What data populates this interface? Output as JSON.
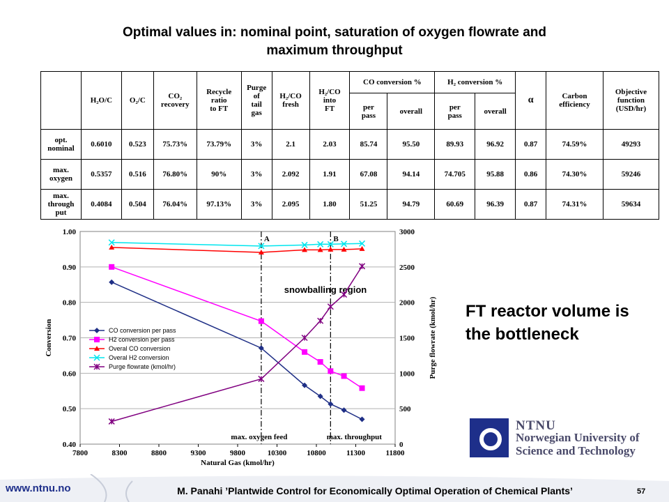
{
  "slide": {
    "title_line1": "Optimal values in: nominal point, saturation of oxygen flowrate and",
    "title_line2": "maximum throughput",
    "note_line1": "FT reactor volume is",
    "note_line2": "the bottleneck"
  },
  "table": {
    "headers": {
      "h2o_c": "H₂O/C",
      "o2_c": "O₂/C",
      "co2_recovery_1": "CO₂",
      "co2_recovery_2": "recovery",
      "recycle_1": "Recycle",
      "recycle_2": "ratio",
      "recycle_3": "to FT",
      "purge_1": "Purge",
      "purge_2": "of",
      "purge_3": "tail",
      "purge_4": "gas",
      "h2co_fresh_1": "H₂/CO",
      "h2co_fresh_2": "fresh",
      "h2co_ft_1": "H₂/CO",
      "h2co_ft_2": "into",
      "h2co_ft_3": "FT",
      "co_conv": "CO conversion %",
      "h2_conv": "H₂ conversion %",
      "per_pass_1": "per",
      "per_pass_2": "pass",
      "overall": "overall",
      "alpha": "α",
      "carbon_eff_1": "Carbon",
      "carbon_eff_2": "efficiency",
      "objective_1": "Objective",
      "objective_2": "function",
      "objective_3": "(USD/hr)"
    },
    "rows": [
      {
        "label1": "opt.",
        "label2": "nominal",
        "label3": "",
        "h2o_c": "0.6010",
        "o2_c": "0.523",
        "co2_rec": "75.73%",
        "recycle": "73.79%",
        "purge": "3%",
        "h2co_fresh": "2.1",
        "h2co_ft": "2.03",
        "co_pp": "85.74",
        "co_overall": "95.50",
        "h2_pp": "89.93",
        "h2_overall": "96.92",
        "alpha": "0.87",
        "carbon_eff": "74.59%",
        "objective": "49293"
      },
      {
        "label1": "max.",
        "label2": "oxygen",
        "label3": "",
        "h2o_c": "0.5357",
        "o2_c": "0.516",
        "co2_rec": "76.80%",
        "recycle": "90%",
        "purge": "3%",
        "h2co_fresh": "2.092",
        "h2co_ft": "1.91",
        "co_pp": "67.08",
        "co_overall": "94.14",
        "h2_pp": "74.705",
        "h2_overall": "95.88",
        "alpha": "0.86",
        "carbon_eff": "74.30%",
        "objective": "59246"
      },
      {
        "label1": "max.",
        "label2": "through",
        "label3": "put",
        "h2o_c": "0.4084",
        "o2_c": "0.504",
        "co2_rec": "76.04%",
        "recycle": "97.13%",
        "purge": "3%",
        "h2co_fresh": "2.095",
        "h2co_ft": "1.80",
        "co_pp": "51.25",
        "co_overall": "94.79",
        "h2_pp": "60.69",
        "h2_overall": "96.39",
        "alpha": "0.87",
        "carbon_eff": "74.31%",
        "objective": "59634"
      }
    ]
  },
  "chart_data": {
    "type": "line",
    "xlabel": "Natural Gas (kmol/hr)",
    "ylabel": "Conversion",
    "y2label": "Purge flowrate (kmol/hr)",
    "xlim": [
      7800,
      11800
    ],
    "ylim": [
      0.4,
      1.0
    ],
    "y2lim": [
      0,
      3000
    ],
    "x_ticks": [
      "7800",
      "8300",
      "8800",
      "9300",
      "9800",
      "10300",
      "10800",
      "11300",
      "11800"
    ],
    "y_ticks": [
      "0.40",
      "0.50",
      "0.60",
      "0.70",
      "0.80",
      "0.90",
      "1.00"
    ],
    "y2_ticks": [
      "0",
      "500",
      "1000",
      "1500",
      "2000",
      "2500",
      "3000"
    ],
    "grid": "horizontal",
    "legend_position": "bottom-left",
    "series": [
      {
        "name": "CO conversion per pass",
        "axis": "left",
        "color": "#1f2f86",
        "marker": "diamond",
        "x": [
          8200,
          10100,
          10650,
          10850,
          10980,
          11150,
          11380
        ],
        "y": [
          0.857,
          0.671,
          0.566,
          0.535,
          0.513,
          0.496,
          0.47
        ]
      },
      {
        "name": "H2 conversion per pass",
        "axis": "left",
        "color": "#ff00ff",
        "marker": "square",
        "x": [
          8200,
          10100,
          10650,
          10850,
          10980,
          11150,
          11380
        ],
        "y": [
          0.9,
          0.747,
          0.66,
          0.632,
          0.606,
          0.592,
          0.558
        ]
      },
      {
        "name": "Overal CO conversion",
        "axis": "left",
        "color": "#ff0000",
        "marker": "triangle",
        "x": [
          8200,
          10100,
          10650,
          10850,
          10980,
          11150,
          11380
        ],
        "y": [
          0.955,
          0.941,
          0.948,
          0.948,
          0.949,
          0.949,
          0.951
        ]
      },
      {
        "name": "Overal H2 conversion",
        "axis": "left",
        "color": "#00e5ee",
        "marker": "x",
        "x": [
          8200,
          10100,
          10650,
          10850,
          10980,
          11150,
          11380
        ],
        "y": [
          0.969,
          0.959,
          0.962,
          0.964,
          0.964,
          0.965,
          0.966
        ]
      },
      {
        "name": "Purge flowrate (kmol/hr)",
        "axis": "right",
        "color": "#800080",
        "marker": "star",
        "x": [
          8200,
          10100,
          10650,
          10850,
          10980,
          11150,
          11380
        ],
        "y": [
          320,
          920,
          1500,
          1740,
          1940,
          2110,
          2510
        ]
      }
    ],
    "vlines": [
      {
        "x": 10100,
        "label": "A",
        "bottom_label": "max. oxygen feed"
      },
      {
        "x": 10980,
        "label": "B",
        "bottom_label": "max. throughput"
      }
    ],
    "annotation": "snowballing region"
  },
  "logo": {
    "line1": "NTNU",
    "line2": "Norwegian University of",
    "line3": "Science and Technology"
  },
  "footer": {
    "url": "www.ntnu.no",
    "citation": "M. Panahi ’Plantwide Control for Economically Optimal Operation of Chemical Plants’",
    "page": "57"
  },
  "colors": {
    "brand_blue": "#1e2f8a",
    "footer_swoosh": "#d9dde8"
  }
}
